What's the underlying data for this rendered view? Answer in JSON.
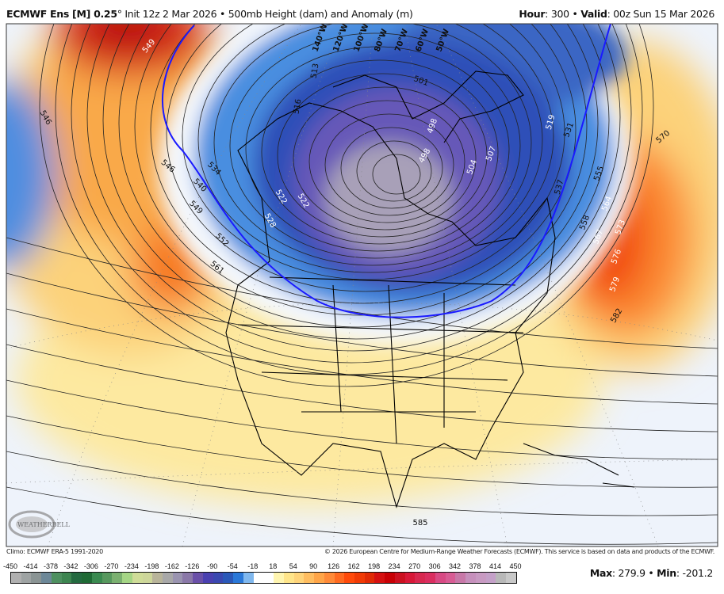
{
  "header": {
    "model": "ECMWF Ens [M] 0.25",
    "degree": "°",
    "init": " Init 12z 2 Mar 2026",
    "sep": " • ",
    "product": "500mb Height (dam) and Anomaly (m)",
    "hour_label": "Hour",
    "hour_value": ": 300",
    "valid_label": "Valid",
    "valid_value": ": 00z Sun 15 Mar 2026"
  },
  "map": {
    "longitude_labels": [
      "140°W",
      "120°W",
      "100°W",
      "80°W",
      "70°W",
      "60°W",
      "50°W"
    ],
    "contour_labels": [
      "549",
      "546",
      "513",
      "516",
      "501",
      "534",
      "540",
      "546",
      "549",
      "552",
      "561",
      "522",
      "528",
      "522",
      "498",
      "498",
      "504",
      "507",
      "519",
      "531",
      "537",
      "555",
      "564",
      "558",
      "567",
      "573",
      "576",
      "579",
      "570",
      "582",
      "585"
    ],
    "highlight_contour_color": "#1a1aff",
    "logo_text": "WEATHERBELL"
  },
  "footer": {
    "climo": "Climo: ECMWF ERA-5 1991-2020",
    "copyright": "© 2026 European Centre for Medium-Range Weather Forecasts (ECMWF). This service is based on data and products of the ECMWF."
  },
  "colorbar": {
    "labels": [
      "-450",
      "-414",
      "-378",
      "-342",
      "-306",
      "-270",
      "-234",
      "-198",
      "-162",
      "-126",
      "-90",
      "-54",
      "-18",
      "18",
      "54",
      "90",
      "126",
      "162",
      "198",
      "234",
      "270",
      "306",
      "342",
      "378",
      "414",
      "450"
    ],
    "colors": [
      "#b0b0b0",
      "#9ea3a3",
      "#8a9494",
      "#6d8898",
      "#4e9060",
      "#3d8550",
      "#246a40",
      "#1f6a35",
      "#3a8a50",
      "#57985e",
      "#7bb070",
      "#a5d585",
      "#cfdc98",
      "#cdd69a",
      "#b8b49a",
      "#a8a8a8",
      "#9a94b0",
      "#8a78a8",
      "#6a50a8",
      "#4a40b0",
      "#3a48b0",
      "#2a58b8",
      "#2a78d8",
      "#80b8ee",
      "#ffffff",
      "#ffffff",
      "#fff5b0",
      "#ffe58a",
      "#ffd47a",
      "#ffbd60",
      "#ffa548",
      "#ff8a38",
      "#ff6a20",
      "#ff4a0a",
      "#f03a05",
      "#e02a05",
      "#d51010",
      "#c80005",
      "#cc1020",
      "#d81838",
      "#d82850",
      "#da2e60",
      "#d84a84",
      "#d85c94",
      "#c878a8",
      "#c690bc",
      "#c89ac2",
      "#c4a0c8",
      "#b8b8b8",
      "#c8c8c8"
    ]
  },
  "stats": {
    "max_label": "Max",
    "max_value": ": 279.9",
    "sep": " • ",
    "min_label": "Min",
    "min_value": ": -201.2"
  }
}
